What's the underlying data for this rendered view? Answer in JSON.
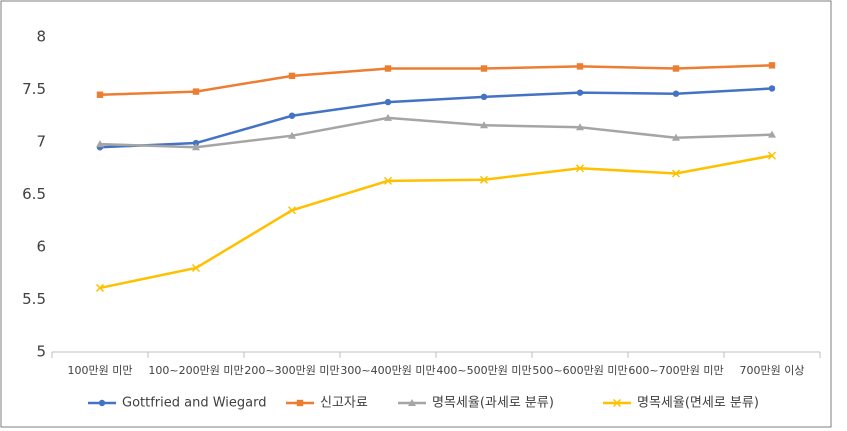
{
  "chart_data": {
    "type": "line",
    "categories": [
      "100만원 미만",
      "100~200만원 미만",
      "200~300만원 미만",
      "300~400만원 미만",
      "400~500만원 미만",
      "500~600만원 미만",
      "600~700만원 미만",
      "700만원 이상"
    ],
    "series": [
      {
        "name": "Gottfried and Wiegard",
        "color": "#4472c4",
        "marker": "circle",
        "values": [
          6.95,
          6.99,
          7.25,
          7.38,
          7.43,
          7.47,
          7.46,
          7.51
        ]
      },
      {
        "name": "신고자료",
        "color": "#ed7d31",
        "marker": "square",
        "values": [
          7.45,
          7.48,
          7.63,
          7.7,
          7.7,
          7.72,
          7.7,
          7.73
        ]
      },
      {
        "name": "명목세율(과세로 분류)",
        "color": "#a5a5a5",
        "marker": "triangle",
        "values": [
          6.98,
          6.95,
          7.06,
          7.23,
          7.16,
          7.14,
          7.04,
          7.07
        ]
      },
      {
        "name": "명목세율(면세로 분류)",
        "color": "#ffc000",
        "marker": "x",
        "values": [
          5.61,
          5.8,
          6.35,
          6.63,
          6.64,
          6.75,
          6.7,
          6.87
        ]
      }
    ],
    "ylim": [
      5,
      8
    ],
    "yticks": [
      5,
      5.5,
      6,
      6.5,
      7,
      7.5,
      8
    ],
    "grid": false,
    "legend": "bottom"
  }
}
